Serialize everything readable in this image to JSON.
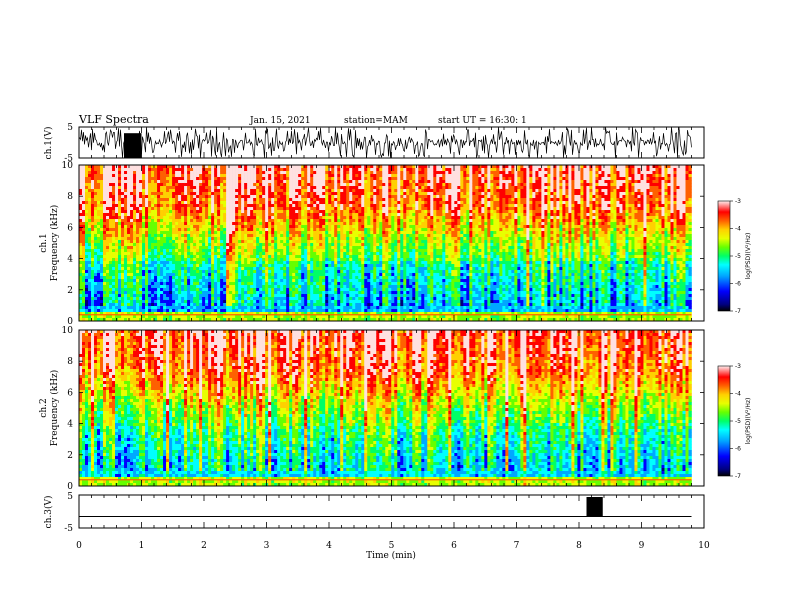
{
  "header": {
    "title": "VLF Spectra",
    "date": "Jan. 15, 2021",
    "station": "station=MAM",
    "start": "start UT = 16:30: 1"
  },
  "colors": {
    "spectrogram_scale": [
      "#00007f",
      "#0000ff",
      "#00a8ff",
      "#00ffff",
      "#00ff66",
      "#66ff00",
      "#e8ff00",
      "#ffd000",
      "#ff6000",
      "#ff0000",
      "#ffe0e0"
    ],
    "waveform": "#000000"
  },
  "chart_data": [
    {
      "type": "line",
      "panel": "ch1-waveform",
      "ylabel": "ch.1(V)",
      "ylim": [
        -5,
        5
      ],
      "yticks": [
        "5",
        "-5"
      ],
      "xlim": [
        0,
        10
      ],
      "description_values": {
        "data_extent_min": 9.8
      }
    },
    {
      "type": "heatmap",
      "panel": "ch1-spectrogram",
      "ylabel_line1": "ch.1",
      "ylabel_line2": "Frequency (kHz)",
      "ylim": [
        0,
        10
      ],
      "yticks": [
        "0",
        "2",
        "4",
        "6",
        "8",
        "10"
      ],
      "colorbar": {
        "label": "log(PSD)(V²/Hz)",
        "range": [
          -7,
          -3
        ],
        "ticks": [
          "-3",
          "-4",
          "-5",
          "-6",
          "-7"
        ]
      }
    },
    {
      "type": "heatmap",
      "panel": "ch2-spectrogram",
      "ylabel_line1": "ch.2",
      "ylabel_line2": "Frequency (kHz)",
      "ylim": [
        0,
        10
      ],
      "yticks": [
        "0",
        "2",
        "4",
        "6",
        "8",
        "10"
      ],
      "colorbar": {
        "label": "log(PSD)(V²/Hz)",
        "range": [
          -7,
          -3
        ],
        "ticks": [
          "-3",
          "-4",
          "-5",
          "-6",
          "-7"
        ]
      }
    },
    {
      "type": "line",
      "panel": "ch3-waveform",
      "ylabel": "ch.3(V)",
      "ylim": [
        -5,
        5
      ],
      "yticks": [
        "5",
        "-5"
      ],
      "baseline_v": -1.5,
      "burst": {
        "x_start": 8.12,
        "x_end": 8.38
      }
    }
  ],
  "xaxis": {
    "label": "Time (min)",
    "ticks": [
      "0",
      "1",
      "2",
      "3",
      "4",
      "5",
      "6",
      "7",
      "8",
      "9",
      "10"
    ],
    "range": [
      0,
      10
    ]
  }
}
